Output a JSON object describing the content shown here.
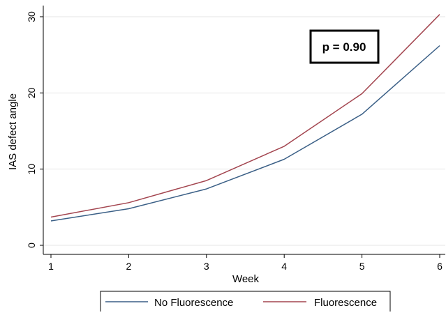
{
  "chart_data": {
    "type": "line",
    "title": "",
    "xlabel": "Week",
    "ylabel": "IAS defect angle",
    "x": [
      1,
      2,
      3,
      4,
      5,
      6
    ],
    "x_tick_labels": [
      "1",
      "2",
      "3",
      "4",
      "5",
      "6"
    ],
    "xlim": [
      1,
      6
    ],
    "y_ticks": [
      0,
      10,
      20,
      30
    ],
    "y_tick_labels": [
      "0",
      "10",
      "20",
      "30"
    ],
    "ylim": [
      0,
      30
    ],
    "grid": true,
    "legend_position": "bottom",
    "series": [
      {
        "name": "No Fluorescence",
        "color": "#3a5f86",
        "values": [
          3.2,
          4.8,
          7.4,
          11.3,
          17.2,
          26.2
        ]
      },
      {
        "name": "Fluorescence",
        "color": "#a3454f",
        "values": [
          3.7,
          5.6,
          8.5,
          13.0,
          19.9,
          30.3
        ]
      }
    ],
    "annotations": [
      {
        "text": "p = 0.90"
      }
    ]
  }
}
